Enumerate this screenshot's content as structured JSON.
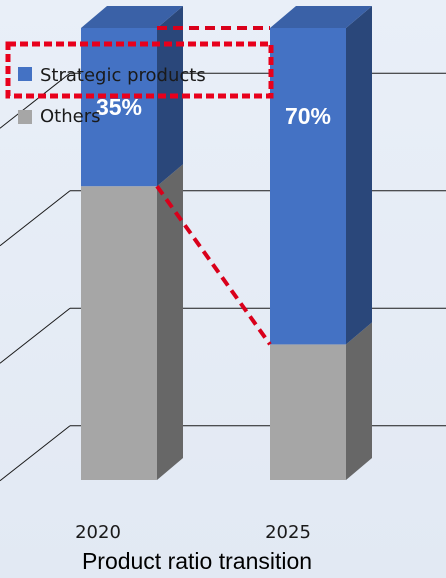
{
  "chart_data": {
    "type": "bar",
    "stacked": true,
    "three_d": true,
    "title": "Product ratio transition",
    "categories": [
      "2020",
      "2025"
    ],
    "unit": "%",
    "series": [
      {
        "name": "Strategic products",
        "values": [
          35,
          70
        ],
        "color": "#4472c4",
        "labels": [
          "35%",
          "70%"
        ]
      },
      {
        "name": "Others",
        "values": [
          65,
          30
        ],
        "color": "#a6a6a6"
      }
    ],
    "legend_position": "top-left",
    "highlight": {
      "style": "red dashed box",
      "target": "Strategic products legend entry",
      "color": "#e8001c"
    },
    "connectors": {
      "style": "red dashed",
      "color": "#d9001b"
    },
    "grid": true,
    "background": "#dde6f2"
  }
}
